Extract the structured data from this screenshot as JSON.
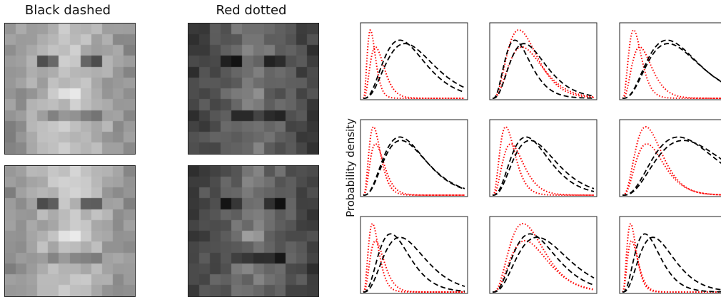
{
  "titles": {
    "left": "Black dashed",
    "right": "Red dotted"
  },
  "ylabel": "Probability density",
  "colors": {
    "black_series": "#000000",
    "red_series": "#ff0000"
  },
  "chart_data": {
    "type": "line",
    "description_of_panels": "3x3 grid of probability density curves; each panel has two black dashed curves and two red dotted curves",
    "ylabel": "Probability density",
    "grid": false,
    "panels": [
      {
        "row": 0,
        "col": 0,
        "black": [
          {
            "mode": 0.36,
            "width": 0.62
          },
          {
            "mode": 0.41,
            "width": 0.62
          }
        ],
        "red": [
          {
            "mode": 0.07,
            "width": 0.28
          },
          {
            "mode": 0.12,
            "width": 0.42
          }
        ]
      },
      {
        "row": 0,
        "col": 1,
        "black": [
          {
            "mode": 0.22,
            "width": 0.55
          },
          {
            "mode": 0.31,
            "width": 0.55
          }
        ],
        "red": [
          {
            "mode": 0.26,
            "width": 0.9
          },
          {
            "mode": 0.29,
            "width": 0.95
          }
        ]
      },
      {
        "row": 0,
        "col": 2,
        "black": [
          {
            "mode": 0.44,
            "width": 0.6
          },
          {
            "mode": 0.45,
            "width": 0.6
          }
        ],
        "red": [
          {
            "mode": 0.11,
            "width": 0.3
          },
          {
            "mode": 0.17,
            "width": 0.35
          }
        ]
      },
      {
        "row": 1,
        "col": 0,
        "black": [
          {
            "mode": 0.36,
            "width": 0.45
          },
          {
            "mode": 0.37,
            "width": 0.45
          }
        ],
        "red": [
          {
            "mode": 0.1,
            "width": 0.32
          },
          {
            "mode": 0.12,
            "width": 0.36
          }
        ]
      },
      {
        "row": 1,
        "col": 1,
        "black": [
          {
            "mode": 0.33,
            "width": 0.6
          },
          {
            "mode": 0.37,
            "width": 0.6
          }
        ],
        "red": [
          {
            "mode": 0.13,
            "width": 0.45
          },
          {
            "mode": 0.18,
            "width": 0.55
          }
        ]
      },
      {
        "row": 1,
        "col": 2,
        "black": [
          {
            "mode": 0.55,
            "width": 0.55
          },
          {
            "mode": 0.6,
            "width": 0.55
          }
        ],
        "red": [
          {
            "mode": 0.23,
            "width": 0.35
          },
          {
            "mode": 0.24,
            "width": 0.35
          }
        ]
      },
      {
        "row": 2,
        "col": 0,
        "black": [
          {
            "mode": 0.27,
            "width": 0.55
          },
          {
            "mode": 0.36,
            "width": 0.55
          }
        ],
        "red": [
          {
            "mode": 0.09,
            "width": 0.35
          },
          {
            "mode": 0.12,
            "width": 0.4
          }
        ]
      },
      {
        "row": 2,
        "col": 1,
        "black": [
          {
            "mode": 0.37,
            "width": 0.5
          },
          {
            "mode": 0.44,
            "width": 0.5
          }
        ],
        "red": [
          {
            "mode": 0.3,
            "width": 0.55
          },
          {
            "mode": 0.32,
            "width": 0.55
          }
        ]
      },
      {
        "row": 2,
        "col": 2,
        "black": [
          {
            "mode": 0.22,
            "width": 0.3
          },
          {
            "mode": 0.3,
            "width": 0.3
          }
        ],
        "red": [
          {
            "mode": 0.08,
            "width": 0.18
          },
          {
            "mode": 0.09,
            "width": 0.2
          }
        ]
      }
    ]
  }
}
